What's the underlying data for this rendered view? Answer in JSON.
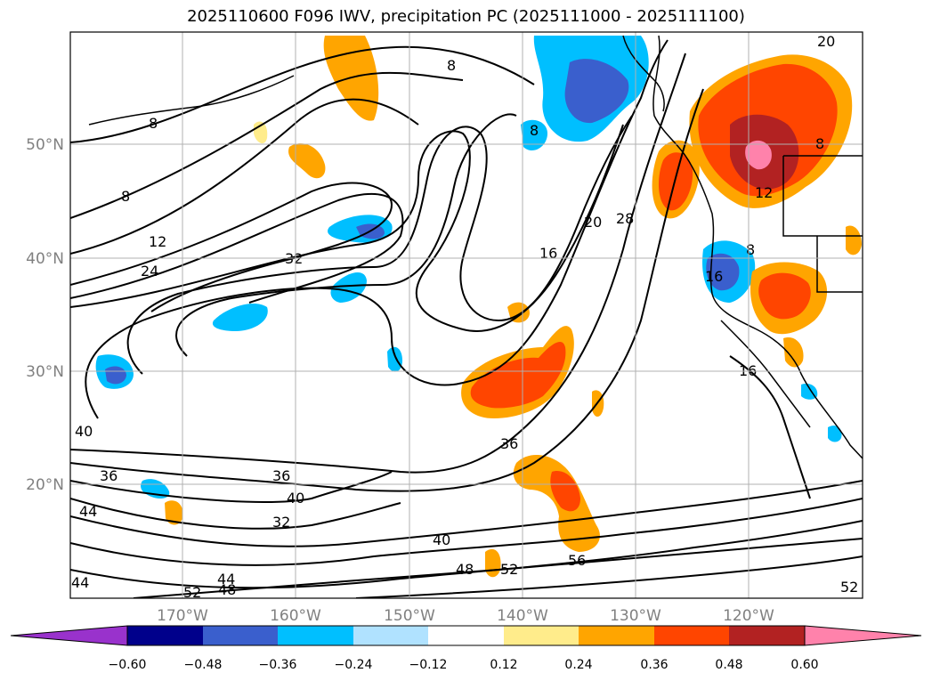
{
  "title": "2025110600 F096 IWV, precipitation PC (2025111000 - 2025111100)",
  "lat_labels": [
    "50°N",
    "40°N",
    "30°N",
    "20°N"
  ],
  "lon_labels": [
    "170°W",
    "160°W",
    "150°W",
    "140°W",
    "130°W",
    "120°W"
  ],
  "contour_labels": [
    "8",
    "8",
    "8",
    "8",
    "12",
    "24",
    "32",
    "16",
    "20",
    "28",
    "16",
    "16",
    "12",
    "8",
    "20",
    "8",
    "40",
    "36",
    "36",
    "36",
    "40",
    "32",
    "44",
    "44",
    "40",
    "48",
    "52",
    "56",
    "52",
    "48",
    "44",
    "52"
  ],
  "colorbar": {
    "colors": [
      "#9932cc",
      "#00008b",
      "#3a5fcd",
      "#00bfff",
      "#b0e2ff",
      "#ffffff",
      "#ffec8b",
      "#ffa500",
      "#ff4500",
      "#b22222",
      "#ff82ab"
    ],
    "ticks": [
      "−0.60",
      "−0.48",
      "−0.36",
      "−0.24",
      "−0.12",
      "0.12",
      "0.24",
      "0.36",
      "0.48",
      "0.60"
    ]
  }
}
